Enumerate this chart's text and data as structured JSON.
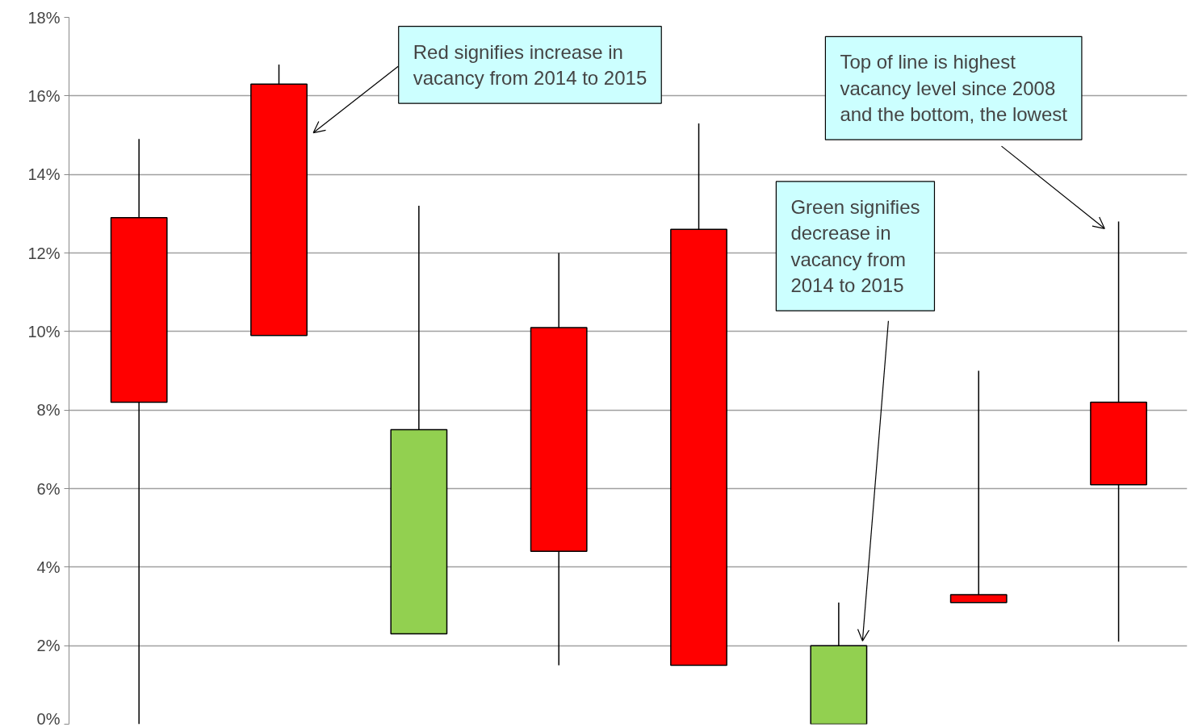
{
  "chart_data": {
    "type": "candlestick",
    "categories": [
      null,
      null,
      null,
      null,
      null,
      null,
      null,
      null
    ],
    "ohlc": [
      [
        8.2,
        14.9,
        0,
        12.9
      ],
      [
        9.9,
        16.8,
        9.9,
        16.3
      ],
      [
        7.5,
        13.2,
        2.3,
        2.3
      ],
      [
        4.4,
        12.0,
        1.5,
        10.1
      ],
      [
        1.5,
        15.3,
        1.5,
        12.6
      ],
      [
        2.0,
        3.1,
        0,
        0
      ],
      [
        3.1,
        9.0,
        3.1,
        3.3
      ],
      [
        6.1,
        12.8,
        2.1,
        8.2
      ]
    ],
    "colors": [
      "#ff0000",
      "#ff0000",
      "#92d050",
      "#ff0000",
      "#ff0000",
      "#92d050",
      "#ff0000",
      "#ff0000"
    ],
    "ylim": [
      0,
      18
    ],
    "yticks": [
      {
        "value": 0,
        "label": "0%"
      },
      {
        "value": 2,
        "label": "2%"
      },
      {
        "value": 4,
        "label": "4%"
      },
      {
        "value": 6,
        "label": "6%"
      },
      {
        "value": 8,
        "label": "8%"
      },
      {
        "value": 10,
        "label": "10%"
      },
      {
        "value": 12,
        "label": "12%"
      },
      {
        "value": 14,
        "label": "14%"
      },
      {
        "value": 16,
        "label": "16%"
      },
      {
        "value": 18,
        "label": "18%"
      }
    ],
    "grid": "y",
    "tick_labels": "y",
    "annotations": [
      "Red signifies increase in\nvacancy from 2014 to 2015",
      "Top of line is highest\nvacancy level since 2008\nand the bottom, the lowest",
      "Green signifies\ndecrease in\nvacancy from\n2014 to 2015"
    ]
  }
}
